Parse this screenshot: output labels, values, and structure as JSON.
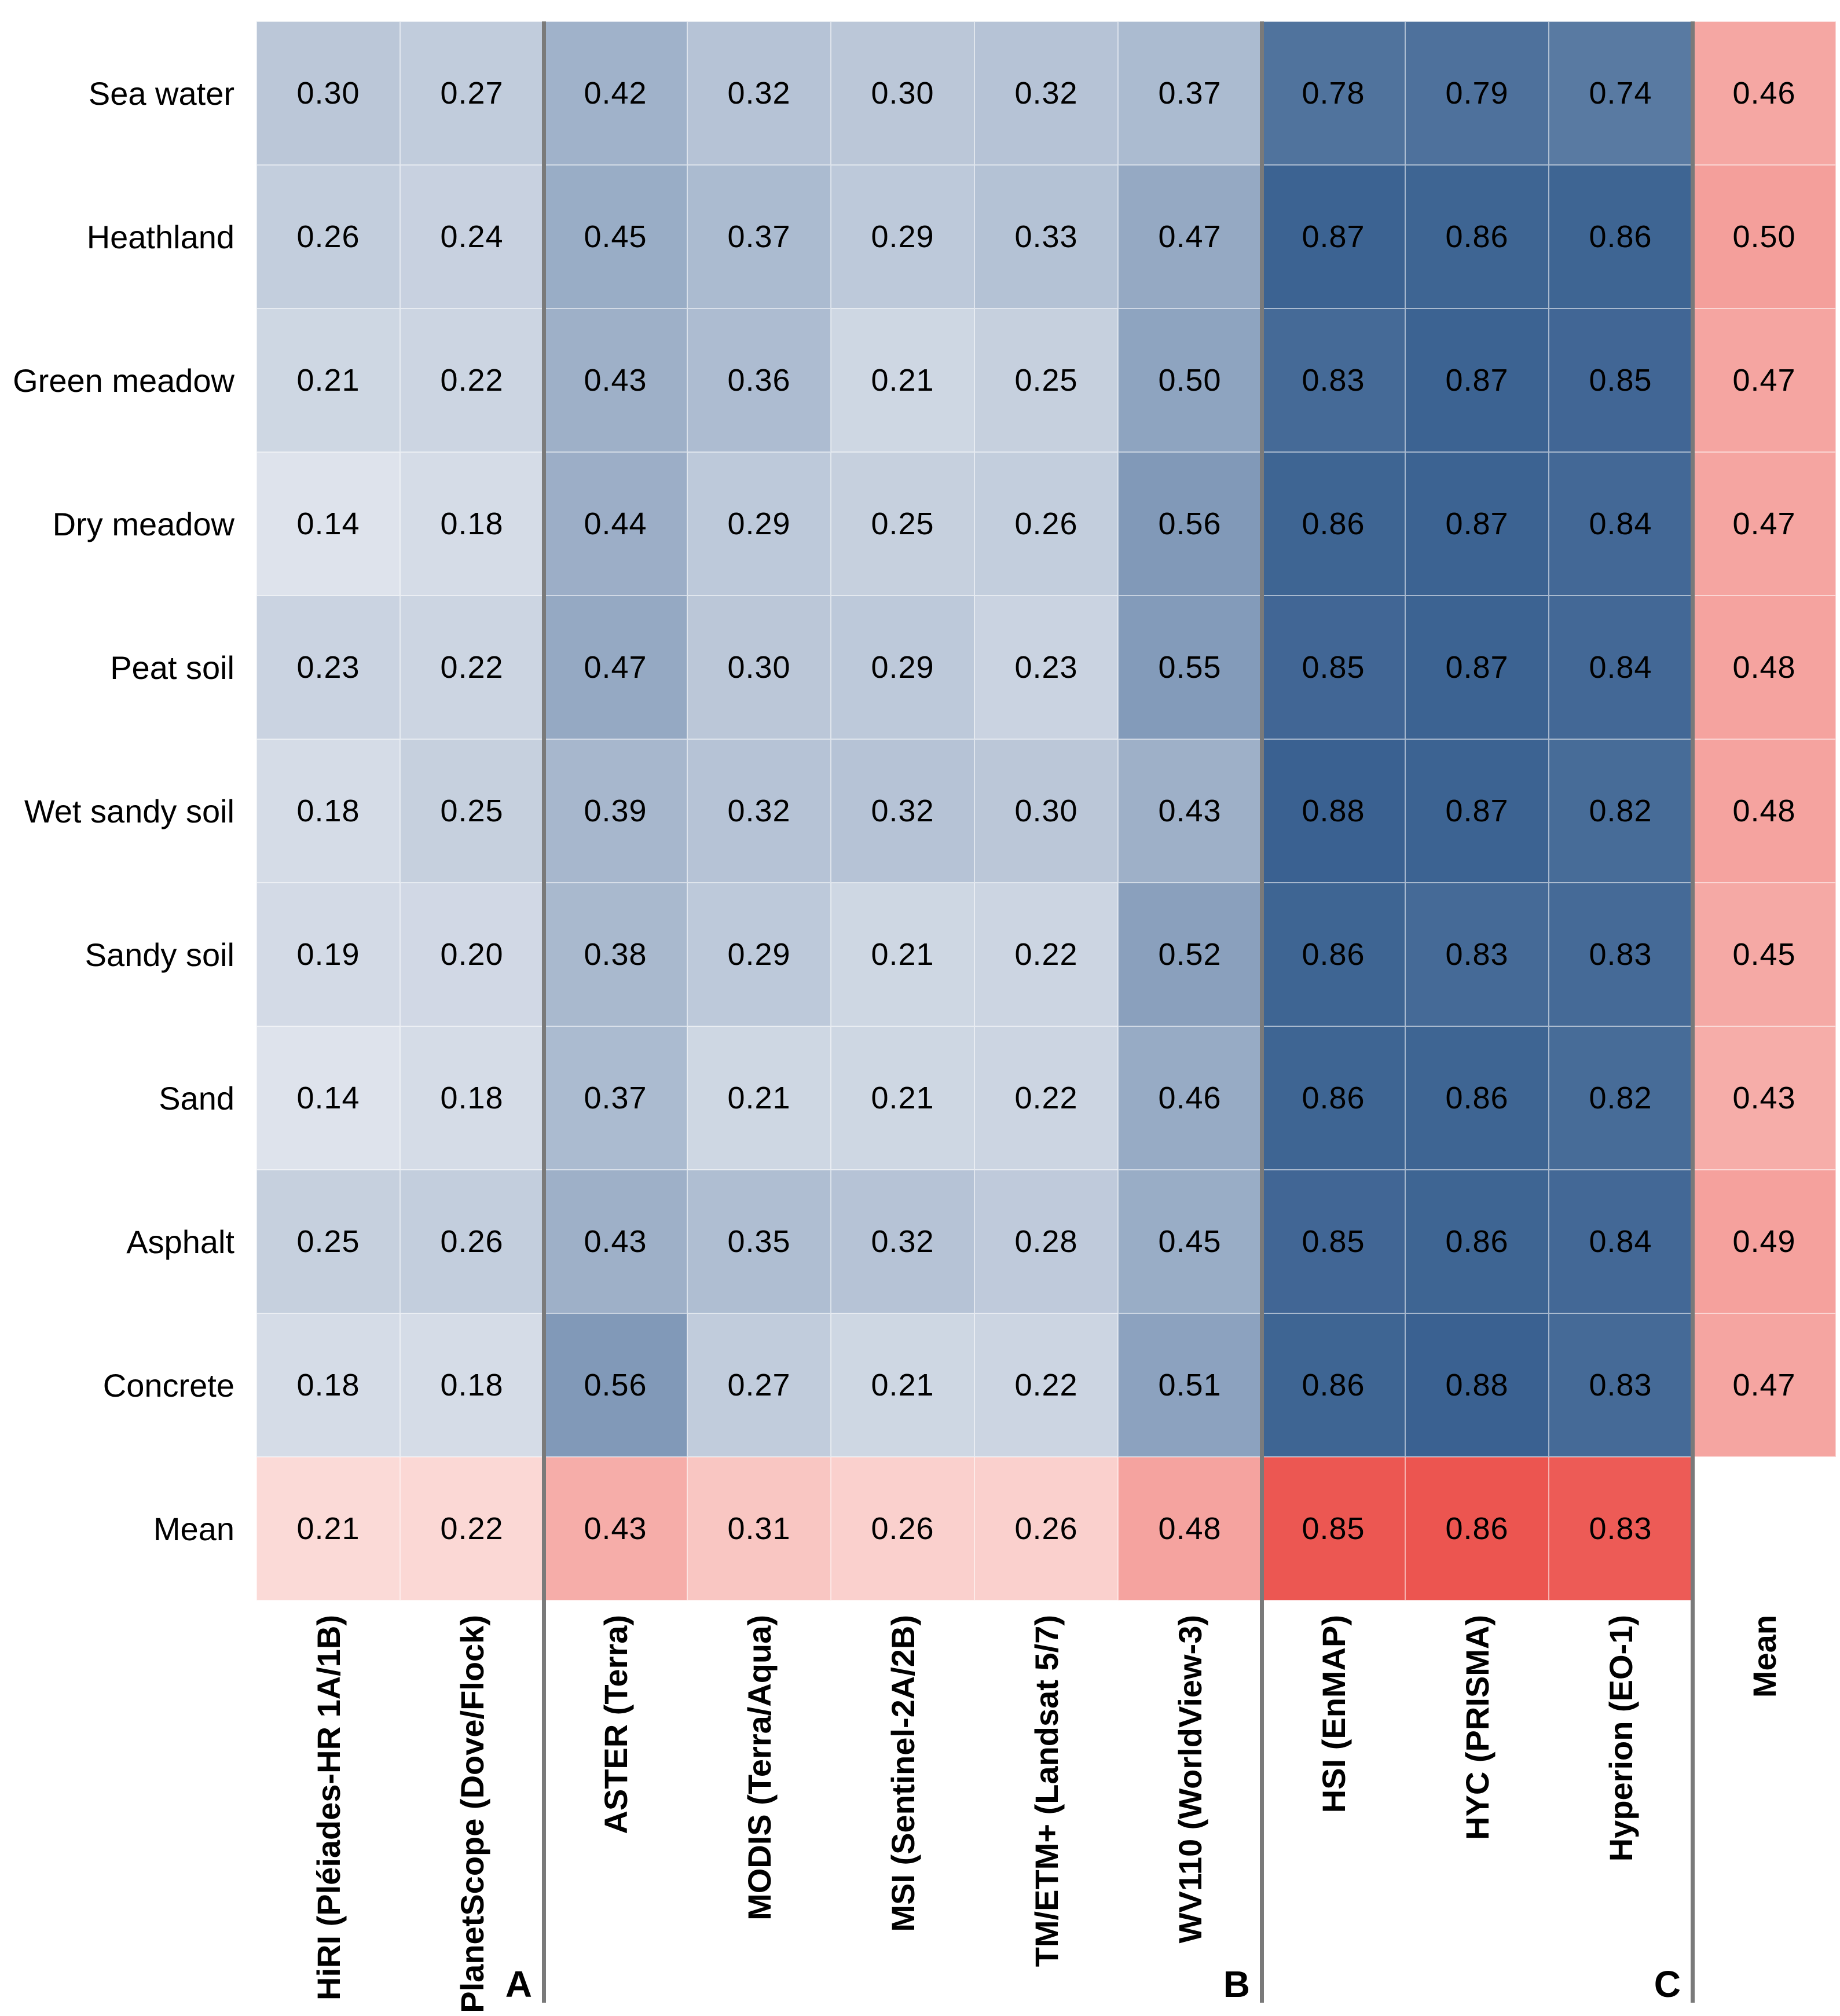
{
  "chart_data": {
    "type": "heatmap",
    "title": "",
    "row_labels": [
      "Sea water",
      "Heathland",
      "Green meadow",
      "Dry meadow",
      "Peat soil",
      "Wet sandy soil",
      "Sandy soil",
      "Sand",
      "Asphalt",
      "Concrete",
      "Mean"
    ],
    "col_labels": [
      "HiRI (Pléiades-HR 1A/1B)",
      "PlanetScope (Dove/Flock)",
      "ASTER (Terra)",
      "MODIS (Terra/Aqua)",
      "MSI (Sentinel-2A/2B)",
      "TM/ETM+ (Landsat 5/7)",
      "WV110 (WorldView-3)",
      "HSI (EnMAP)",
      "HYC (PRISMA)",
      "Hyperion (EO-1)",
      "Mean"
    ],
    "sensor_groups": [
      {
        "label": "A",
        "after_column": 2
      },
      {
        "label": "B",
        "after_column": 7
      },
      {
        "label": "C",
        "after_column": 10
      }
    ],
    "values": [
      [
        0.3,
        0.27,
        0.42,
        0.32,
        0.3,
        0.32,
        0.37,
        0.78,
        0.79,
        0.74,
        0.46
      ],
      [
        0.26,
        0.24,
        0.45,
        0.37,
        0.29,
        0.33,
        0.47,
        0.87,
        0.86,
        0.86,
        0.5
      ],
      [
        0.21,
        0.22,
        0.43,
        0.36,
        0.21,
        0.25,
        0.5,
        0.83,
        0.87,
        0.85,
        0.47
      ],
      [
        0.14,
        0.18,
        0.44,
        0.29,
        0.25,
        0.26,
        0.56,
        0.86,
        0.87,
        0.84,
        0.47
      ],
      [
        0.23,
        0.22,
        0.47,
        0.3,
        0.29,
        0.23,
        0.55,
        0.85,
        0.87,
        0.84,
        0.48
      ],
      [
        0.18,
        0.25,
        0.39,
        0.32,
        0.32,
        0.3,
        0.43,
        0.88,
        0.87,
        0.82,
        0.48
      ],
      [
        0.19,
        0.2,
        0.38,
        0.29,
        0.21,
        0.22,
        0.52,
        0.86,
        0.83,
        0.83,
        0.45
      ],
      [
        0.14,
        0.18,
        0.37,
        0.21,
        0.21,
        0.22,
        0.46,
        0.86,
        0.86,
        0.82,
        0.43
      ],
      [
        0.25,
        0.26,
        0.43,
        0.35,
        0.32,
        0.28,
        0.45,
        0.85,
        0.86,
        0.84,
        0.49
      ],
      [
        0.18,
        0.18,
        0.56,
        0.27,
        0.21,
        0.22,
        0.51,
        0.86,
        0.88,
        0.83,
        0.47
      ],
      [
        0.21,
        0.22,
        0.43,
        0.31,
        0.26,
        0.26,
        0.48,
        0.85,
        0.86,
        0.83,
        null
      ]
    ],
    "value_format": "two_decimals",
    "legend": "none",
    "colorbar": false,
    "notes": "Mean row and Mean column use red scale; all other cells blue scale; bottom-right corner cell is empty"
  },
  "colors": {
    "background": "#FFFFFF",
    "text": "#000000",
    "blue_scale_low": "#DEE3EC",
    "blue_scale_high": "#3A6191",
    "red_scale_low": "#FBDAD7",
    "red_scale_high": "#EC5550",
    "group_divider": "#7A7A7A"
  },
  "scales": {
    "blue": {
      "min": 0.14,
      "max": 0.88
    },
    "red": {
      "min": 0.21,
      "max": 0.86
    }
  }
}
